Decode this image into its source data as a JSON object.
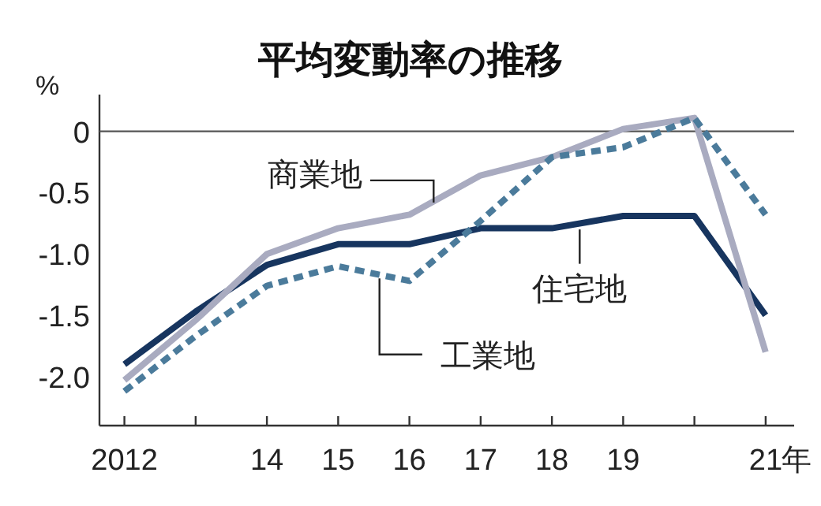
{
  "chart_data": {
    "type": "line",
    "title": "平均変動率の推移",
    "ylabel": "%",
    "x": [
      2012,
      2013,
      2014,
      2015,
      2016,
      2017,
      2018,
      2019,
      2020,
      2021
    ],
    "series": [
      {
        "name": "住宅地",
        "color": "#17355f",
        "values": [
          -1.9,
          -1.47,
          -1.09,
          -0.92,
          -0.92,
          -0.79,
          -0.79,
          -0.69,
          -0.69,
          -1.5
        ]
      },
      {
        "name": "商業地",
        "color": "#a9abc0",
        "values": [
          -2.03,
          -1.54,
          -1.0,
          -0.79,
          -0.68,
          -0.36,
          -0.21,
          0.02,
          0.11,
          -1.8
        ]
      },
      {
        "name": "工業地",
        "color": "#4b7b9b",
        "line_style": "dashed",
        "values": [
          -2.12,
          -1.67,
          -1.26,
          -1.1,
          -1.22,
          -0.73,
          -0.21,
          -0.13,
          0.11,
          -0.68
        ]
      }
    ],
    "xlim": [
      2011.65,
      2021.4
    ],
    "ylim": [
      -2.4,
      0.3
    ],
    "xticks": [
      {
        "value": 2012,
        "label": "2012"
      },
      {
        "value": 2013,
        "label": null
      },
      {
        "value": 2014,
        "label": "14"
      },
      {
        "value": 2015,
        "label": "15"
      },
      {
        "value": 2016,
        "label": "16"
      },
      {
        "value": 2017,
        "label": "17"
      },
      {
        "value": 2018,
        "label": "18"
      },
      {
        "value": 2019,
        "label": "19"
      },
      {
        "value": 2020,
        "label": null
      },
      {
        "value": 2021,
        "label": "21"
      }
    ],
    "xlabel": "年",
    "yticks": [
      {
        "value": 0,
        "label": "0"
      },
      {
        "value": -0.5,
        "label": "-0.5"
      },
      {
        "value": -1,
        "label": "-1.0"
      },
      {
        "value": -1.5,
        "label": "-1.5"
      },
      {
        "value": -2,
        "label": "-2.0"
      }
    ],
    "ref_lines": [
      {
        "axis": "y",
        "value": 0,
        "color": "#555555"
      }
    ],
    "grid": false,
    "legend": false,
    "marker": "none"
  }
}
